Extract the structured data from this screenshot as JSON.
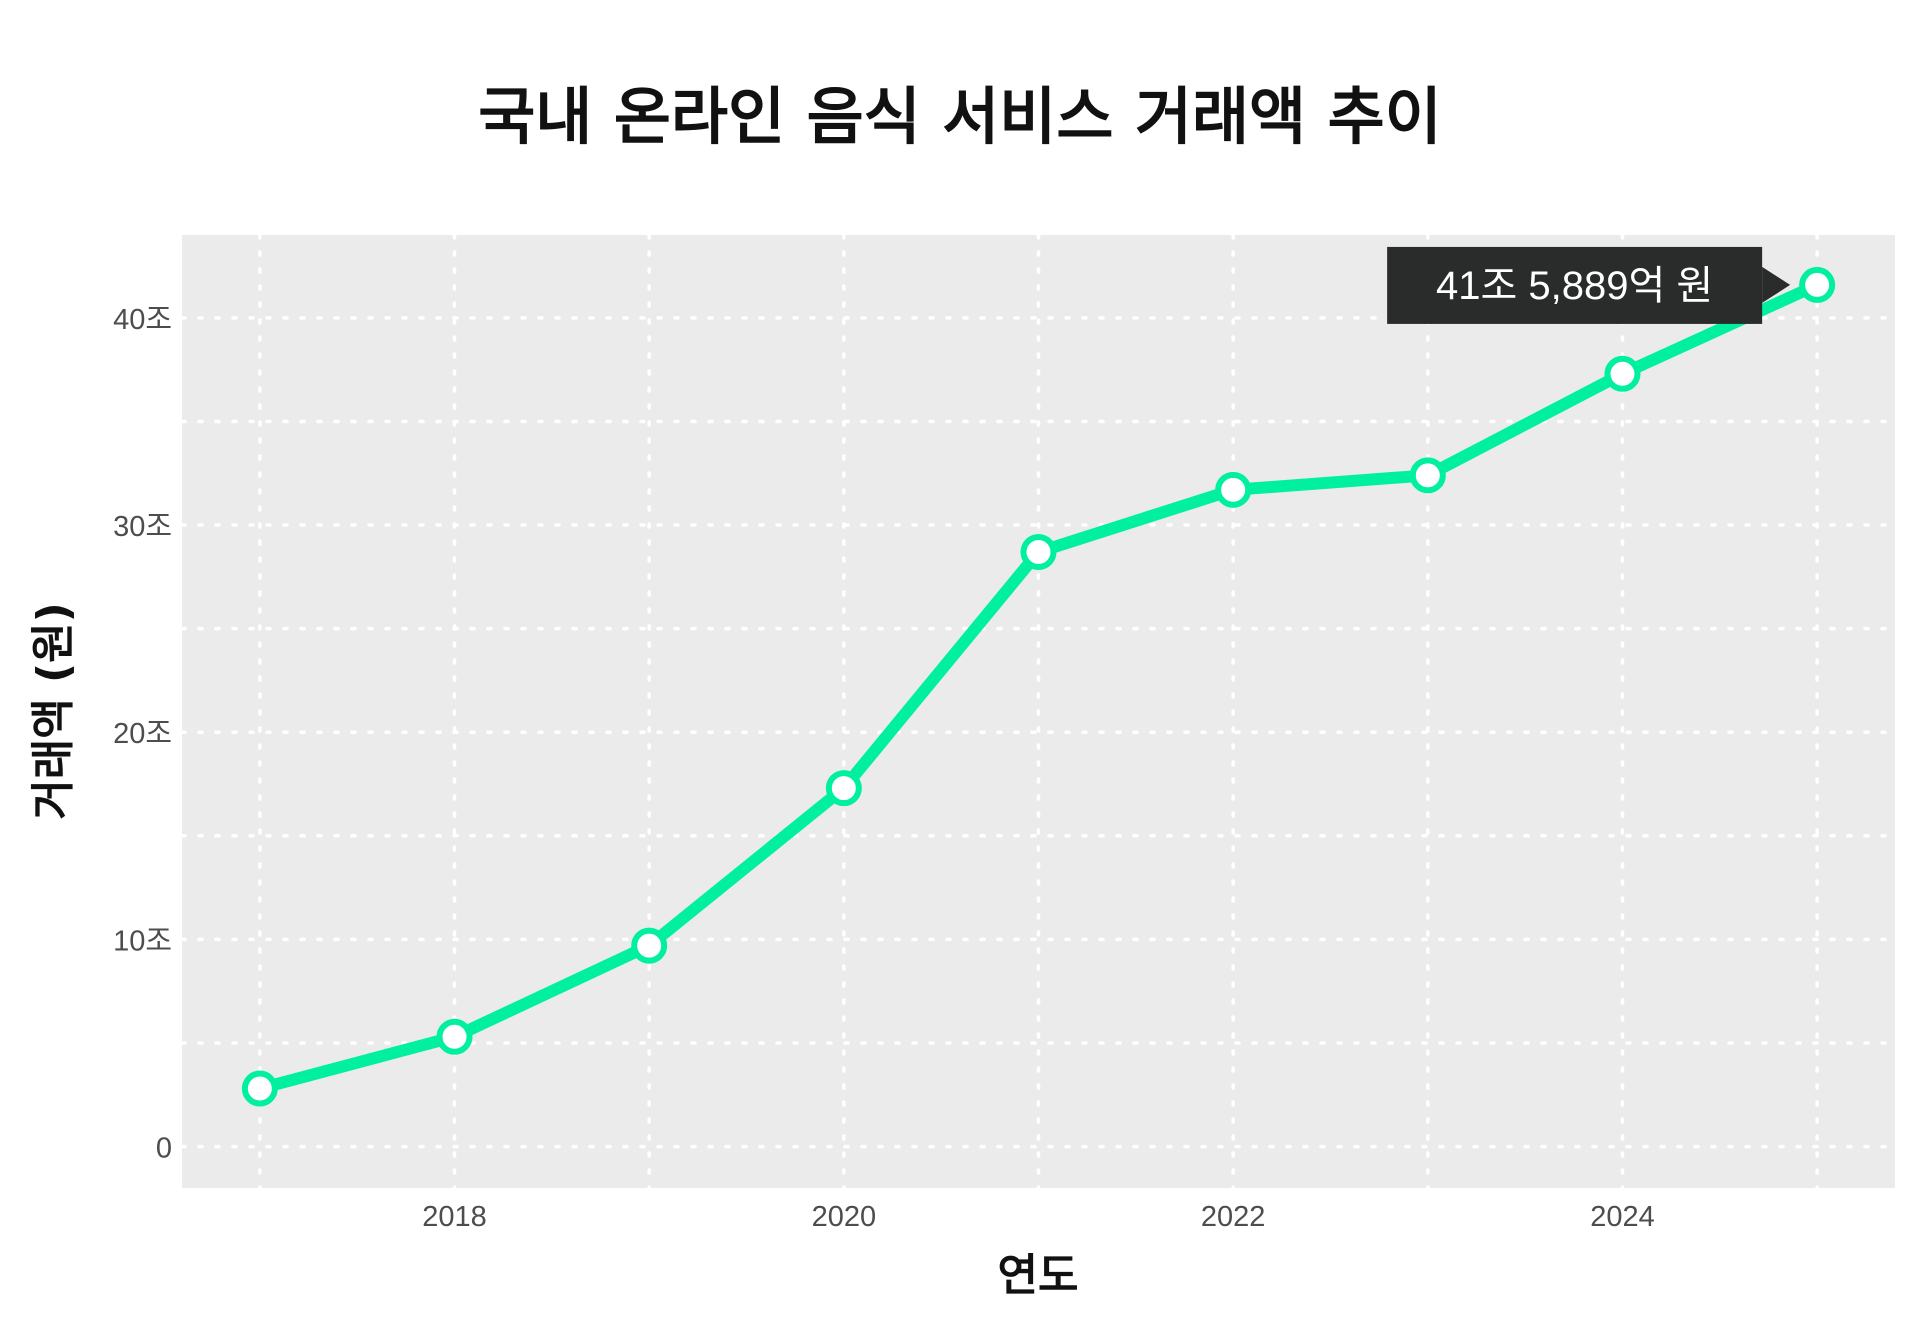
{
  "chart_data": {
    "type": "line",
    "title": "국내 온라인 음식 서비스 거래액 추이",
    "xlabel": "연도",
    "ylabel": "거래액 (원)",
    "x": [
      2017,
      2018,
      2019,
      2020,
      2021,
      2022,
      2023,
      2024,
      2025
    ],
    "series": [
      {
        "name": "거래액",
        "unit": "조 원",
        "values": [
          2.8,
          5.3,
          9.7,
          17.3,
          28.7,
          31.7,
          32.4,
          37.3,
          41.59
        ]
      }
    ],
    "xlim": [
      2016.6,
      2025.4
    ],
    "ylim": [
      -2,
      44
    ],
    "xticks": [
      2018,
      2020,
      2022,
      2024
    ],
    "xtick_labels": [
      "2018",
      "2020",
      "2022",
      "2024"
    ],
    "yticks": [
      0,
      10,
      20,
      30,
      40
    ],
    "ytick_labels": [
      "0",
      "10조",
      "20조",
      "30조",
      "40조"
    ],
    "grid": true,
    "annotation": {
      "text": "41조 5,889억 원",
      "x": 2025,
      "y": 41.59
    },
    "colors": {
      "line": "#00F0A0",
      "panel": "#EBEBEB",
      "annotation_bg": "#2A2C2B"
    }
  }
}
